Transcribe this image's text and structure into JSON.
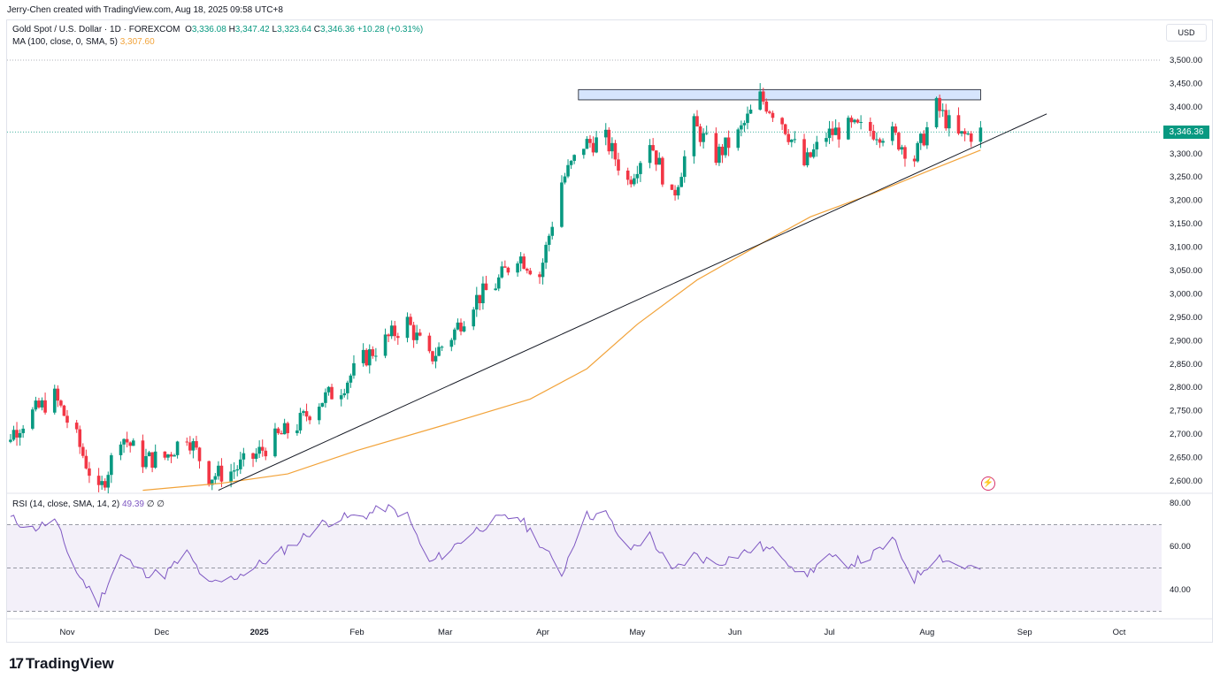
{
  "attribution": "Jerry-Chen created with TradingView.com, Aug 18, 2025 09:58 UTC+8",
  "legend": {
    "symbol": "Gold Spot / U.S. Dollar · 1D · FOREXCOM",
    "o_label": "O",
    "o": "3,336.08",
    "h_label": "H",
    "h": "3,347.42",
    "l_label": "L",
    "l": "3,323.64",
    "c_label": "C",
    "c": "3,346.36",
    "change": "+10.28 (+0.31%)",
    "ma_label": "MA (100, close, 0, SMA, 5)",
    "ma_value": "3,307.60",
    "rsi_label": "RSI (14, close, SMA, 14, 2)",
    "rsi_value": "49.39",
    "rsi_extra": "∅ ∅"
  },
  "currency_button": "USD",
  "last_price_tag": "3,346.36",
  "brand": {
    "logo": "17",
    "name": "TradingView"
  },
  "icons": {
    "alert": "flash-icon",
    "logo": "tradingview-logo-icon"
  },
  "colors": {
    "up": "#089981",
    "down": "#f23645",
    "ma": "#f2a33a",
    "rsi": "#7e57c2",
    "resistance": "#bbd3fb"
  },
  "chart_data": [
    {
      "type": "candlestick",
      "title": "Gold Spot / U.S. Dollar · 1D · FOREXCOM",
      "y_ticks": [
        "3,500.00",
        "3,450.00",
        "3,400.00",
        "3,350.00",
        "3,300.00",
        "3,250.00",
        "3,200.00",
        "3,150.00",
        "3,100.00",
        "3,050.00",
        "3,000.00",
        "2,950.00",
        "2,900.00",
        "2,850.00",
        "2,800.00",
        "2,750.00",
        "2,700.00",
        "2,650.00",
        "2,600.00"
      ],
      "ylim": [
        2590,
        3515
      ],
      "x_ticks": [
        {
          "label": "Nov",
          "date": "2024-11-01",
          "bold": false
        },
        {
          "label": "Dec",
          "date": "2024-12-01",
          "bold": false
        },
        {
          "label": "2025",
          "date": "2025-01-01",
          "bold": true
        },
        {
          "label": "Feb",
          "date": "2025-02-01",
          "bold": false
        },
        {
          "label": "Mar",
          "date": "2025-03-01",
          "bold": false
        },
        {
          "label": "Apr",
          "date": "2025-04-01",
          "bold": false
        },
        {
          "label": "May",
          "date": "2025-05-01",
          "bold": false
        },
        {
          "label": "Jun",
          "date": "2025-06-01",
          "bold": false
        },
        {
          "label": "Jul",
          "date": "2025-07-01",
          "bold": false
        },
        {
          "label": "Aug",
          "date": "2025-08-01",
          "bold": false
        },
        {
          "label": "Sep",
          "date": "2025-09-01",
          "bold": false
        },
        {
          "label": "Oct",
          "date": "2025-10-01",
          "bold": false
        }
      ],
      "close_series": [
        {
          "date": "2024-10-07",
          "close": 2645
        },
        {
          "date": "2024-10-14",
          "close": 2700
        },
        {
          "date": "2024-10-21",
          "close": 2745
        },
        {
          "date": "2024-10-28",
          "close": 2780
        },
        {
          "date": "2024-11-04",
          "close": 2690
        },
        {
          "date": "2024-11-11",
          "close": 2570
        },
        {
          "date": "2024-11-18",
          "close": 2700
        },
        {
          "date": "2024-11-25",
          "close": 2645
        },
        {
          "date": "2024-12-02",
          "close": 2650
        },
        {
          "date": "2024-12-09",
          "close": 2700
        },
        {
          "date": "2024-12-16",
          "close": 2610
        },
        {
          "date": "2024-12-23",
          "close": 2620
        },
        {
          "date": "2024-12-30",
          "close": 2650
        },
        {
          "date": "2025-01-06",
          "close": 2690
        },
        {
          "date": "2025-01-13",
          "close": 2720
        },
        {
          "date": "2025-01-20",
          "close": 2770
        },
        {
          "date": "2025-01-27",
          "close": 2800
        },
        {
          "date": "2025-02-03",
          "close": 2860
        },
        {
          "date": "2025-02-10",
          "close": 2900
        },
        {
          "date": "2025-02-17",
          "close": 2940
        },
        {
          "date": "2025-02-24",
          "close": 2860
        },
        {
          "date": "2025-03-03",
          "close": 2910
        },
        {
          "date": "2025-03-10",
          "close": 2985
        },
        {
          "date": "2025-03-17",
          "close": 3020
        },
        {
          "date": "2025-03-24",
          "close": 3085
        },
        {
          "date": "2025-03-31",
          "close": 3040
        },
        {
          "date": "2025-04-07",
          "close": 3240
        },
        {
          "date": "2025-04-14",
          "close": 3320
        },
        {
          "date": "2025-04-21",
          "close": 3330
        },
        {
          "date": "2025-04-28",
          "close": 3240
        },
        {
          "date": "2025-05-05",
          "close": 3330
        },
        {
          "date": "2025-05-12",
          "close": 3200
        },
        {
          "date": "2025-05-19",
          "close": 3360
        },
        {
          "date": "2025-05-26",
          "close": 3295
        },
        {
          "date": "2025-06-02",
          "close": 3340
        },
        {
          "date": "2025-06-09",
          "close": 3420
        },
        {
          "date": "2025-06-16",
          "close": 3370
        },
        {
          "date": "2025-06-23",
          "close": 3275
        },
        {
          "date": "2025-06-30",
          "close": 3340
        },
        {
          "date": "2025-07-07",
          "close": 3355
        },
        {
          "date": "2025-07-14",
          "close": 3350
        },
        {
          "date": "2025-07-21",
          "close": 3340
        },
        {
          "date": "2025-07-28",
          "close": 3290
        },
        {
          "date": "2025-08-04",
          "close": 3400
        },
        {
          "date": "2025-08-11",
          "close": 3335
        },
        {
          "date": "2025-08-18",
          "close": 3346.36
        }
      ],
      "series": [
        {
          "name": "MA (100, close, 0, SMA, 5)",
          "color": "#f2a33a",
          "points": [
            {
              "date": "2024-11-25",
              "value": 2580
            },
            {
              "date": "2024-12-20",
              "value": 2595
            },
            {
              "date": "2025-01-10",
              "value": 2615
            },
            {
              "date": "2025-02-01",
              "value": 2665
            },
            {
              "date": "2025-03-01",
              "value": 2720
            },
            {
              "date": "2025-03-28",
              "value": 2775
            },
            {
              "date": "2025-04-15",
              "value": 2840
            },
            {
              "date": "2025-05-01",
              "value": 2935
            },
            {
              "date": "2025-05-20",
              "value": 3030
            },
            {
              "date": "2025-06-10",
              "value": 3110
            },
            {
              "date": "2025-06-25",
              "value": 3165
            },
            {
              "date": "2025-07-15",
              "value": 3215
            },
            {
              "date": "2025-08-01",
              "value": 3262
            },
            {
              "date": "2025-08-18",
              "value": 3307.6
            }
          ]
        }
      ],
      "annotations": [
        {
          "type": "resistance-box",
          "from": "2025-04-14",
          "to": "2025-08-18",
          "low": 3415,
          "high": 3437
        },
        {
          "type": "trendline",
          "from": {
            "date": "2024-12-19",
            "value": 2580
          },
          "to": {
            "date": "2025-09-08",
            "value": 3385
          }
        },
        {
          "type": "horizontal-line",
          "value": 3500
        },
        {
          "type": "horizontal-line",
          "value": 3346.36
        }
      ],
      "grid": false
    },
    {
      "type": "line",
      "title": "RSI (14, close, SMA, 14, 2)",
      "y_ticks": [
        "80.00",
        "60.00",
        "40.00"
      ],
      "ylim": [
        26,
        81
      ],
      "bands": {
        "upper": 70,
        "middle": 50,
        "lower": 30
      },
      "series": [
        {
          "name": "RSI",
          "color": "#7e57c2",
          "points": [
            {
              "date": "2024-10-07",
              "value": 64
            },
            {
              "date": "2024-10-14",
              "value": 73
            },
            {
              "date": "2024-10-21",
              "value": 68
            },
            {
              "date": "2024-10-28",
              "value": 72
            },
            {
              "date": "2024-11-04",
              "value": 48
            },
            {
              "date": "2024-11-11",
              "value": 34
            },
            {
              "date": "2024-11-18",
              "value": 56
            },
            {
              "date": "2024-11-25",
              "value": 48
            },
            {
              "date": "2024-12-02",
              "value": 47
            },
            {
              "date": "2024-12-09",
              "value": 57
            },
            {
              "date": "2024-12-16",
              "value": 42
            },
            {
              "date": "2024-12-23",
              "value": 45
            },
            {
              "date": "2024-12-30",
              "value": 50
            },
            {
              "date": "2025-01-06",
              "value": 56
            },
            {
              "date": "2025-01-13",
              "value": 62
            },
            {
              "date": "2025-01-20",
              "value": 70
            },
            {
              "date": "2025-01-27",
              "value": 73
            },
            {
              "date": "2025-02-03",
              "value": 74
            },
            {
              "date": "2025-02-10",
              "value": 78
            },
            {
              "date": "2025-02-17",
              "value": 74
            },
            {
              "date": "2025-02-24",
              "value": 52
            },
            {
              "date": "2025-03-03",
              "value": 59
            },
            {
              "date": "2025-03-10",
              "value": 67
            },
            {
              "date": "2025-03-17",
              "value": 72
            },
            {
              "date": "2025-03-24",
              "value": 74
            },
            {
              "date": "2025-03-31",
              "value": 62
            },
            {
              "date": "2025-04-07",
              "value": 47
            },
            {
              "date": "2025-04-14",
              "value": 74
            },
            {
              "date": "2025-04-21",
              "value": 75
            },
            {
              "date": "2025-04-28",
              "value": 58
            },
            {
              "date": "2025-05-05",
              "value": 65
            },
            {
              "date": "2025-05-12",
              "value": 48
            },
            {
              "date": "2025-05-19",
              "value": 56
            },
            {
              "date": "2025-05-26",
              "value": 52
            },
            {
              "date": "2025-06-02",
              "value": 56
            },
            {
              "date": "2025-06-09",
              "value": 60
            },
            {
              "date": "2025-06-16",
              "value": 56
            },
            {
              "date": "2025-06-23",
              "value": 46
            },
            {
              "date": "2025-06-30",
              "value": 55
            },
            {
              "date": "2025-07-07",
              "value": 52
            },
            {
              "date": "2025-07-14",
              "value": 55
            },
            {
              "date": "2025-07-21",
              "value": 63
            },
            {
              "date": "2025-07-28",
              "value": 45
            },
            {
              "date": "2025-08-04",
              "value": 56
            },
            {
              "date": "2025-08-11",
              "value": 51
            },
            {
              "date": "2025-08-18",
              "value": 49.39
            }
          ]
        }
      ]
    }
  ]
}
